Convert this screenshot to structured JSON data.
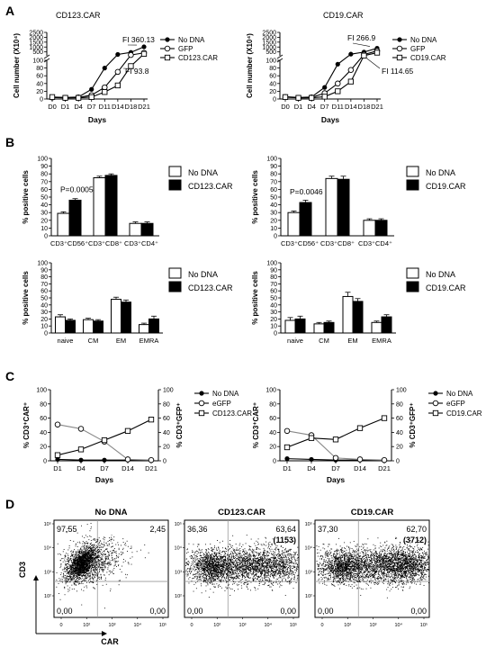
{
  "panel_letters": [
    "A",
    "B",
    "C",
    "D"
  ],
  "chart_data": [
    {
      "id": "A1",
      "type": "line",
      "title": "CD123.CAR",
      "xlabel": "Days",
      "ylabel": "Cell number (X10⁴)",
      "categories": [
        "D0",
        "D1",
        "D4",
        "D7",
        "D11",
        "D14",
        "D18",
        "D21"
      ],
      "x_index": [
        0,
        1,
        2,
        3,
        4,
        5,
        6,
        7
      ],
      "y_break": {
        "low": [
          0,
          100
        ],
        "high": [
          100,
          2500
        ]
      },
      "yticks_low": [
        0,
        20,
        40,
        60,
        80,
        100
      ],
      "yticks_high": [
        500,
        1000,
        1500,
        2000,
        2500
      ],
      "series": [
        {
          "name": "No DNA",
          "marker": "filled-circle",
          "values": [
            5,
            4,
            5,
            25,
            80,
            240,
            450,
            1020
          ]
        },
        {
          "name": "GFP",
          "marker": "open-circle",
          "values": [
            4,
            3,
            4,
            10,
            30,
            70,
            180,
            400
          ]
        },
        {
          "name": "CD123.CAR",
          "marker": "open-square",
          "values": [
            5,
            3,
            3,
            5,
            18,
            35,
            85,
            300
          ]
        }
      ],
      "annotations": [
        "FI 360.13",
        "FI 93.8"
      ]
    },
    {
      "id": "A2",
      "type": "line",
      "title": "CD19.CAR",
      "xlabel": "Days",
      "ylabel": "Cell number (X10⁴)",
      "categories": [
        "D0",
        "D1",
        "D4",
        "D7",
        "D11",
        "D14",
        "D18",
        "D21"
      ],
      "x_index": [
        0,
        1,
        2,
        3,
        4,
        5,
        6,
        7
      ],
      "y_break": {
        "low": [
          0,
          100
        ],
        "high": [
          100,
          2500
        ]
      },
      "yticks_low": [
        0,
        20,
        40,
        60,
        80,
        100
      ],
      "yticks_high": [
        500,
        1000,
        1500,
        2000,
        2500
      ],
      "series": [
        {
          "name": "No DNA",
          "marker": "filled-circle",
          "values": [
            6,
            4,
            5,
            30,
            90,
            270,
            480,
            880
          ]
        },
        {
          "name": "GFP",
          "marker": "open-circle",
          "values": [
            5,
            3,
            4,
            15,
            40,
            75,
            230,
            600
          ]
        },
        {
          "name": "CD19.CAR",
          "marker": "open-square",
          "values": [
            5,
            3,
            3,
            6,
            20,
            45,
            120,
            420
          ]
        }
      ],
      "annotations": [
        "FI 266.9",
        "FI 114.65"
      ]
    },
    {
      "id": "B1",
      "type": "bar",
      "ylabel": "% positive cells",
      "ylim": [
        0,
        100
      ],
      "yticks": [
        0,
        10,
        20,
        30,
        40,
        50,
        60,
        70,
        80,
        90,
        100
      ],
      "categories": [
        "CD3⁺CD56⁺",
        "CD3⁺CD8⁺",
        "CD3⁺CD4⁺"
      ],
      "series": [
        {
          "name": "No DNA",
          "values": [
            29,
            75,
            16
          ],
          "errors": [
            2,
            2,
            2
          ]
        },
        {
          "name": "CD123.CAR",
          "values": [
            46,
            78,
            16
          ],
          "errors": [
            2,
            2,
            2
          ]
        }
      ],
      "annotations": [
        "P=0.0005"
      ]
    },
    {
      "id": "B2",
      "type": "bar",
      "ylabel": "% positive cells",
      "ylim": [
        0,
        100
      ],
      "yticks": [
        0,
        10,
        20,
        30,
        40,
        50,
        60,
        70,
        80,
        90,
        100
      ],
      "categories": [
        "CD3⁺CD56⁺",
        "CD3⁺CD8⁺",
        "CD3⁺CD4⁺"
      ],
      "series": [
        {
          "name": "No DNA",
          "values": [
            30,
            74,
            20
          ],
          "errors": [
            2,
            3,
            2
          ]
        },
        {
          "name": "CD19.CAR",
          "values": [
            43,
            73,
            20
          ],
          "errors": [
            3,
            4,
            2
          ]
        }
      ],
      "annotations": [
        "P=0.0046"
      ]
    },
    {
      "id": "B3",
      "type": "bar",
      "ylabel": "% positive cells",
      "ylim": [
        0,
        100
      ],
      "yticks": [
        0,
        10,
        20,
        30,
        40,
        50,
        60,
        70,
        80,
        90,
        100
      ],
      "categories": [
        "naive",
        "CM",
        "EM",
        "EMRA"
      ],
      "series": [
        {
          "name": "No DNA",
          "values": [
            23,
            19,
            48,
            12
          ],
          "errors": [
            3,
            2,
            3,
            2
          ]
        },
        {
          "name": "CD123.CAR",
          "values": [
            18,
            17,
            44,
            20
          ],
          "errors": [
            2,
            2,
            3,
            4
          ]
        }
      ]
    },
    {
      "id": "B4",
      "type": "bar",
      "ylabel": "% positive cells",
      "ylim": [
        0,
        100
      ],
      "yticks": [
        0,
        10,
        20,
        30,
        40,
        50,
        60,
        70,
        80,
        90,
        100
      ],
      "categories": [
        "naive",
        "CM",
        "EM",
        "EMRA"
      ],
      "series": [
        {
          "name": "No DNA",
          "values": [
            18,
            13,
            52,
            15
          ],
          "errors": [
            4,
            2,
            6,
            2
          ]
        },
        {
          "name": "CD19.CAR",
          "values": [
            20,
            15,
            45,
            23
          ],
          "errors": [
            4,
            2,
            4,
            3
          ]
        }
      ]
    },
    {
      "id": "C1",
      "type": "line",
      "xlabel": "Days",
      "ylabel": "% CD3⁺CAR⁺",
      "ylabel_right": "% CD3⁺GFP⁺",
      "ylim": [
        0,
        100
      ],
      "yticks": [
        0,
        20,
        40,
        60,
        80,
        100
      ],
      "categories": [
        "D1",
        "D4",
        "D7",
        "D14",
        "D21"
      ],
      "series": [
        {
          "name": "No DNA",
          "marker": "filled-circle",
          "values": [
            2,
            1,
            1,
            1,
            1
          ]
        },
        {
          "name": "eGFP",
          "marker": "open-circle",
          "values": [
            51,
            45,
            27,
            2,
            1
          ]
        },
        {
          "name": "CD123.CAR",
          "marker": "open-square",
          "values": [
            8,
            16,
            29,
            42,
            58
          ]
        }
      ]
    },
    {
      "id": "C2",
      "type": "line",
      "xlabel": "Days",
      "ylabel": "% CD3⁺CAR⁺",
      "ylabel_right": "% CD3⁺GFP⁺",
      "ylim": [
        0,
        100
      ],
      "yticks": [
        0,
        20,
        40,
        60,
        80,
        100
      ],
      "categories": [
        "D1",
        "D4",
        "D7",
        "D14",
        "D21"
      ],
      "series": [
        {
          "name": "No DNA",
          "marker": "filled-circle",
          "values": [
            3,
            2,
            1,
            1,
            1
          ]
        },
        {
          "name": "eGFP",
          "marker": "open-circle",
          "values": [
            42,
            36,
            4,
            2,
            1
          ]
        },
        {
          "name": "CD19.CAR",
          "marker": "open-square",
          "values": [
            19,
            32,
            30,
            46,
            60
          ]
        }
      ]
    },
    {
      "id": "D",
      "type": "scatter",
      "xlabel": "CAR",
      "ylabel": "CD3",
      "x_ticks": [
        "0",
        "10²",
        "10³",
        "10⁴",
        "10⁵"
      ],
      "y_ticks": [
        "10²",
        "10³",
        "10⁴",
        "10⁵"
      ],
      "plots": [
        {
          "title": "No DNA",
          "q_ul": "97,55",
          "q_ur": "2,45",
          "q_ll": "0,00",
          "q_lr": "0,00",
          "mfi": ""
        },
        {
          "title": "CD123.CAR",
          "q_ul": "36,36",
          "q_ur": "63,64",
          "q_ll": "0,00",
          "q_lr": "0,00",
          "mfi": "(1153)"
        },
        {
          "title": "CD19.CAR",
          "q_ul": "37,30",
          "q_ur": "62,70",
          "q_ll": "0,00",
          "q_lr": "0,00",
          "mfi": "(3712)"
        }
      ]
    }
  ]
}
